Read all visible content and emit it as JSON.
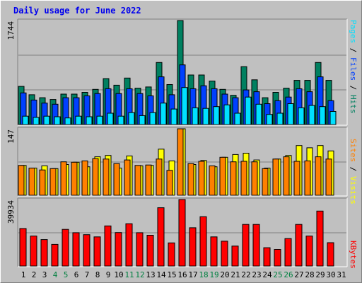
{
  "title": "Daily usage for June 2022",
  "colors": {
    "hits": "#008060",
    "files": "#0040ff",
    "pages": "#00e0ff",
    "visits": "#ffff00",
    "sites": "#ff8000",
    "kbytes": "#ff0000",
    "weekend_label": "#008040",
    "weekday_label": "#000000",
    "gridline": "#808080"
  },
  "right_labels": {
    "top": {
      "hits": "Hits",
      "files": "Files",
      "pages": "Pages",
      "sep": "/"
    },
    "mid": {
      "visits": "Visits",
      "sites": "Sites",
      "sep": "/"
    },
    "bottom": {
      "kbytes": "KBytes"
    }
  },
  "chart_data": [
    {
      "type": "bar",
      "panel": "hits-files-pages",
      "categories": [
        "1",
        "2",
        "3",
        "4",
        "5",
        "6",
        "7",
        "8",
        "9",
        "10",
        "11",
        "12",
        "13",
        "14",
        "15",
        "16",
        "17",
        "18",
        "19",
        "20",
        "21",
        "22",
        "23",
        "24",
        "25",
        "26",
        "27",
        "28",
        "29",
        "30",
        "31"
      ],
      "weekend_days": [
        "4",
        "5",
        "11",
        "12",
        "18",
        "19",
        "25",
        "26"
      ],
      "ytick_label": "1744",
      "ylim": [
        0,
        1744
      ],
      "series": [
        {
          "name": "Hits",
          "values": [
            640,
            500,
            450,
            420,
            510,
            510,
            540,
            590,
            770,
            660,
            780,
            610,
            630,
            1040,
            670,
            1744,
            830,
            830,
            730,
            590,
            490,
            970,
            750,
            450,
            540,
            610,
            740,
            740,
            1040,
            740,
            0
          ]
        },
        {
          "name": "Files",
          "values": [
            530,
            410,
            360,
            340,
            450,
            450,
            480,
            520,
            600,
            520,
            600,
            520,
            480,
            800,
            500,
            1000,
            600,
            650,
            600,
            510,
            450,
            580,
            550,
            350,
            400,
            460,
            600,
            550,
            800,
            400,
            0
          ]
        },
        {
          "name": "Pages",
          "values": [
            140,
            120,
            140,
            130,
            110,
            140,
            130,
            140,
            190,
            140,
            200,
            150,
            200,
            360,
            260,
            620,
            280,
            270,
            300,
            330,
            190,
            460,
            340,
            170,
            190,
            350,
            280,
            320,
            300,
            220,
            0
          ]
        }
      ]
    },
    {
      "type": "bar",
      "panel": "visits-sites",
      "categories": [
        "1",
        "2",
        "3",
        "4",
        "5",
        "6",
        "7",
        "8",
        "9",
        "10",
        "11",
        "12",
        "13",
        "14",
        "15",
        "16",
        "17",
        "18",
        "19",
        "20",
        "21",
        "22",
        "23",
        "24",
        "25",
        "26",
        "27",
        "28",
        "29",
        "30",
        "31"
      ],
      "ytick_label": "147",
      "ylim": [
        0,
        147
      ],
      "series": [
        {
          "name": "Visits",
          "values": [
            66,
            60,
            65,
            59,
            68,
            73,
            63,
            85,
            88,
            60,
            87,
            65,
            66,
            102,
            76,
            147,
            68,
            77,
            63,
            84,
            90,
            93,
            78,
            60,
            80,
            88,
            110,
            105,
            110,
            98,
            0
          ]
        },
        {
          "name": "Sites",
          "values": [
            66,
            60,
            56,
            59,
            74,
            73,
            76,
            81,
            80,
            70,
            78,
            66,
            67,
            80,
            55,
            147,
            70,
            75,
            65,
            84,
            74,
            75,
            74,
            59,
            80,
            85,
            75,
            76,
            85,
            80,
            0
          ]
        }
      ]
    },
    {
      "type": "bar",
      "panel": "kbytes",
      "categories": [
        "1",
        "2",
        "3",
        "4",
        "5",
        "6",
        "7",
        "8",
        "9",
        "10",
        "11",
        "12",
        "13",
        "14",
        "15",
        "16",
        "17",
        "18",
        "19",
        "20",
        "21",
        "22",
        "23",
        "24",
        "25",
        "26",
        "27",
        "28",
        "29",
        "30",
        "31"
      ],
      "ytick_label": "39934",
      "ylim": [
        0,
        39934
      ],
      "series": [
        {
          "name": "KBytes",
          "values": [
            22500,
            18000,
            15900,
            13000,
            22000,
            20000,
            18800,
            17500,
            24100,
            20100,
            25400,
            20000,
            18500,
            35000,
            13900,
            39934,
            23000,
            29600,
            17500,
            14900,
            12000,
            25000,
            25000,
            11000,
            10000,
            16500,
            25000,
            18000,
            33000,
            14000,
            0
          ]
        }
      ]
    }
  ]
}
